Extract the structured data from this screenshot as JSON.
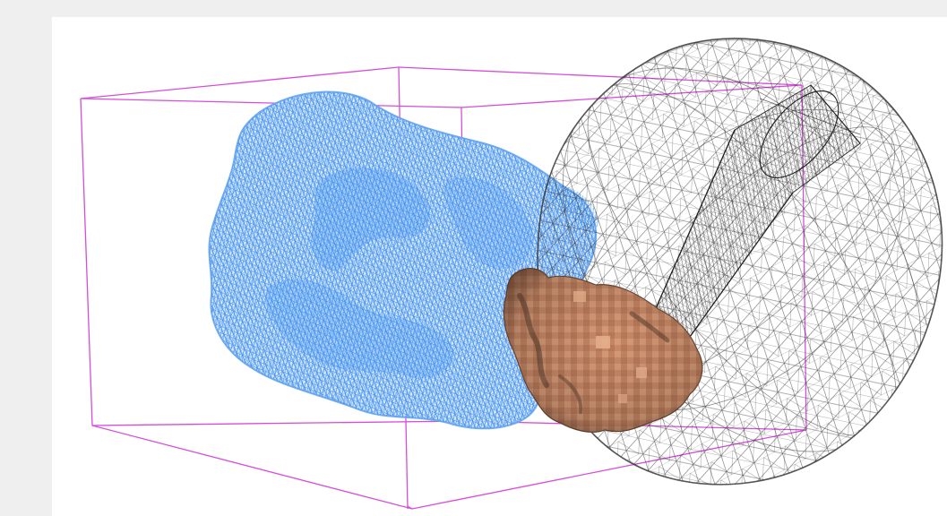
{
  "scene": {
    "colors": {
      "page_background": "#efefef",
      "panel_background": "#ffffff",
      "bounding_box": "#d23ad6",
      "blue_mesh": "#3d8ef0",
      "blue_mesh_fill": "#9fc8f7",
      "sphere_wireframe": "#2b2b2b",
      "cylinder_wireframe": "#1e1e1e",
      "solid_blob": "#c98a68",
      "solid_blob_shadow": "#4e3528",
      "solid_blob_highlight": "#e6b08e"
    },
    "objects": [
      "bounding-box",
      "blue-wireframe-mesh",
      "wireframe-sphere",
      "wireframe-cylinder",
      "solid-surface-blob"
    ]
  }
}
